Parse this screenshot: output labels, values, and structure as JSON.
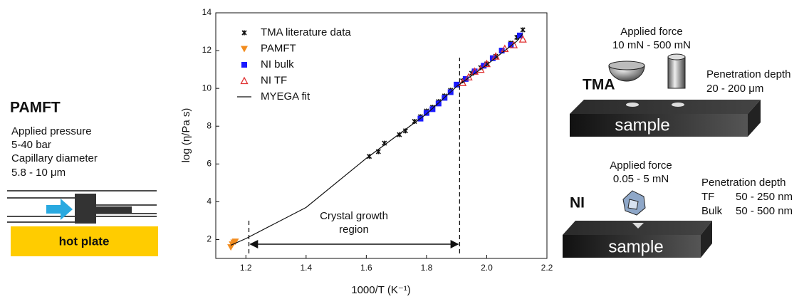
{
  "chart_data": {
    "type": "scatter",
    "xlabel": "1000/T (K⁻¹)",
    "ylabel": "log (η/Pa s)",
    "xlim": [
      1.1,
      2.2
    ],
    "ylim": [
      1,
      14
    ],
    "xticks": [
      1.2,
      1.4,
      1.6,
      1.8,
      {
        "value": 2,
        "label": "2.0"
      },
      2.2
    ],
    "yticks": [
      2,
      4,
      6,
      8,
      10,
      12,
      14
    ],
    "legend": "upper left",
    "series": [
      {
        "name": "TMA literature data",
        "marker": "star",
        "color": "#111111",
        "x": [
          1.61,
          1.64,
          1.66,
          1.71,
          1.73,
          1.76,
          1.78,
          1.8,
          1.82,
          1.84,
          1.86,
          1.88,
          1.92,
          1.95,
          1.98,
          2.0,
          2.03,
          2.05,
          2.08,
          2.1,
          2.12
        ],
        "values": [
          6.4,
          6.65,
          7.1,
          7.55,
          7.75,
          8.25,
          8.5,
          8.8,
          9.0,
          9.3,
          9.6,
          9.9,
          10.4,
          10.8,
          11.1,
          11.3,
          11.7,
          12.0,
          12.4,
          12.7,
          13.1
        ]
      },
      {
        "name": "PAMFT",
        "marker": "triangle-down",
        "color": "#f28c1e",
        "x": [
          1.15,
          1.155,
          1.16,
          1.165
        ],
        "values": [
          1.6,
          1.75,
          1.85,
          1.9
        ]
      },
      {
        "name": "NI bulk",
        "marker": "square",
        "color": "#1a1aff",
        "x": [
          1.78,
          1.8,
          1.82,
          1.84,
          1.86,
          1.88,
          1.9,
          1.93,
          1.96,
          1.99,
          2.02,
          2.05,
          2.08,
          2.11
        ],
        "values": [
          8.4,
          8.7,
          8.9,
          9.2,
          9.5,
          9.8,
          10.2,
          10.5,
          10.9,
          11.2,
          11.6,
          12.0,
          12.3,
          12.8
        ]
      },
      {
        "name": "NI TF",
        "marker": "triangle-open",
        "color": "#e03030",
        "x": [
          1.92,
          1.94,
          1.96,
          1.98,
          2.0,
          2.03,
          2.06,
          2.09,
          2.12
        ],
        "values": [
          10.3,
          10.6,
          10.9,
          11.0,
          11.3,
          11.7,
          12.1,
          12.3,
          12.6
        ]
      },
      {
        "name": "MYEGA fit",
        "marker": "line",
        "color": "#111111",
        "x": [
          1.15,
          1.2,
          1.4,
          1.6,
          1.8,
          1.9,
          2.0,
          2.1,
          2.12
        ],
        "values": [
          1.7,
          2.05,
          3.7,
          6.3,
          8.65,
          10.1,
          11.25,
          12.5,
          12.9
        ]
      }
    ],
    "region_lines": [
      1.21,
      1.91
    ],
    "annotation": [
      "Crystal growth",
      "region"
    ]
  },
  "left_panel": {
    "title": "PAMFT",
    "lines": [
      "Applied pressure",
      "5-40 bar",
      "Capillary diameter",
      "5.8 - 10 μm"
    ],
    "plate_label": "hot plate"
  },
  "right_panel": {
    "tma": {
      "label": "TMA",
      "force_title": "Applied force",
      "force_range": "10 mN - 500 mN",
      "depth_title": "Penetration depth",
      "depth_range": "20 - 200 μm",
      "sample": "sample"
    },
    "ni": {
      "label": "NI",
      "force_title": "Applied force",
      "force_range": "0.05 - 5 mN",
      "depth_title": "Penetration depth",
      "depth_rows": [
        [
          "TF",
          "50 - 250 nm"
        ],
        [
          "Bulk",
          "50 - 500 nm"
        ]
      ],
      "sample": "sample"
    }
  }
}
